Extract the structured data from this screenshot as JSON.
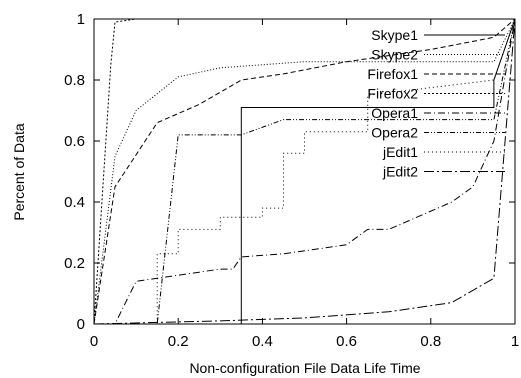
{
  "chart_data": {
    "type": "line",
    "title": "",
    "xlabel": "Non-configuration File Data Life Time",
    "ylabel": "Percent of Data",
    "xlim": [
      0,
      1
    ],
    "ylim": [
      0,
      1
    ],
    "x_ticks": [
      "0",
      "0.2",
      "0.4",
      "0.6",
      "0.8",
      "1"
    ],
    "y_ticks": [
      "0",
      "0.2",
      "0.4",
      "0.6",
      "0.8",
      "1"
    ],
    "x_tick_values": [
      0,
      0.2,
      0.4,
      0.6,
      0.8,
      1
    ],
    "y_tick_values": [
      0,
      0.2,
      0.4,
      0.6,
      0.8,
      1
    ],
    "grid": false,
    "legend_position": "top-right",
    "series": [
      {
        "name": "Skype1",
        "dash": "solid",
        "x": [
          0,
          0.3,
          0.3,
          0.35,
          0.35,
          0.95,
          0.95,
          1
        ],
        "y": [
          0,
          0,
          0,
          0,
          0.71,
          0.71,
          0.8,
          1
        ]
      },
      {
        "name": "Skype2",
        "dash": "fine-dot",
        "x": [
          0,
          0.05,
          0.1,
          0.2,
          0.3,
          0.5,
          0.7,
          0.95,
          1
        ],
        "y": [
          0,
          0.55,
          0.7,
          0.81,
          0.84,
          0.86,
          0.86,
          0.86,
          1
        ]
      },
      {
        "name": "Firefox1",
        "dash": "dash",
        "x": [
          0,
          0.05,
          0.15,
          0.25,
          0.35,
          0.45,
          0.6,
          0.8,
          0.95,
          1
        ],
        "y": [
          0,
          0.45,
          0.66,
          0.72,
          0.8,
          0.82,
          0.86,
          0.9,
          0.94,
          1
        ]
      },
      {
        "name": "Firefox2",
        "dash": "dot",
        "x": [
          0,
          0.04,
          0.05,
          0.1,
          0.95,
          1
        ],
        "y": [
          0,
          0.85,
          0.99,
          1,
          1,
          1
        ]
      },
      {
        "name": "Opera1",
        "dash": "dash-dot",
        "x": [
          0,
          0.05,
          0.1,
          0.2,
          0.3,
          0.33,
          0.35,
          0.45,
          0.55,
          0.6,
          0.65,
          0.7,
          0.75,
          0.85,
          0.9,
          0.95,
          1
        ],
        "y": [
          0,
          0,
          0.14,
          0.16,
          0.18,
          0.18,
          0.22,
          0.23,
          0.25,
          0.26,
          0.31,
          0.31,
          0.34,
          0.4,
          0.45,
          0.6,
          1
        ]
      },
      {
        "name": "Opera2",
        "dash": "dash-dot-dot",
        "x": [
          0,
          0.15,
          0.2,
          0.35,
          0.45,
          0.65,
          0.95,
          1
        ],
        "y": [
          0,
          0,
          0.62,
          0.62,
          0.67,
          0.67,
          0.67,
          1
        ]
      },
      {
        "name": "jEdit1",
        "dash": "sparse-dot",
        "x": [
          0,
          0.15,
          0.15,
          0.2,
          0.2,
          0.3,
          0.3,
          0.4,
          0.4,
          0.45,
          0.45,
          0.5,
          0.5,
          0.65,
          0.65,
          0.95,
          1
        ],
        "y": [
          0,
          0,
          0.23,
          0.23,
          0.31,
          0.31,
          0.35,
          0.35,
          0.38,
          0.38,
          0.56,
          0.56,
          0.63,
          0.63,
          0.75,
          0.8,
          1
        ]
      },
      {
        "name": "jEdit2",
        "dash": "long-dash-dot",
        "x": [
          0,
          0.3,
          0.5,
          0.7,
          0.85,
          0.95,
          1
        ],
        "y": [
          0,
          0.01,
          0.02,
          0.04,
          0.07,
          0.15,
          1
        ]
      }
    ]
  }
}
